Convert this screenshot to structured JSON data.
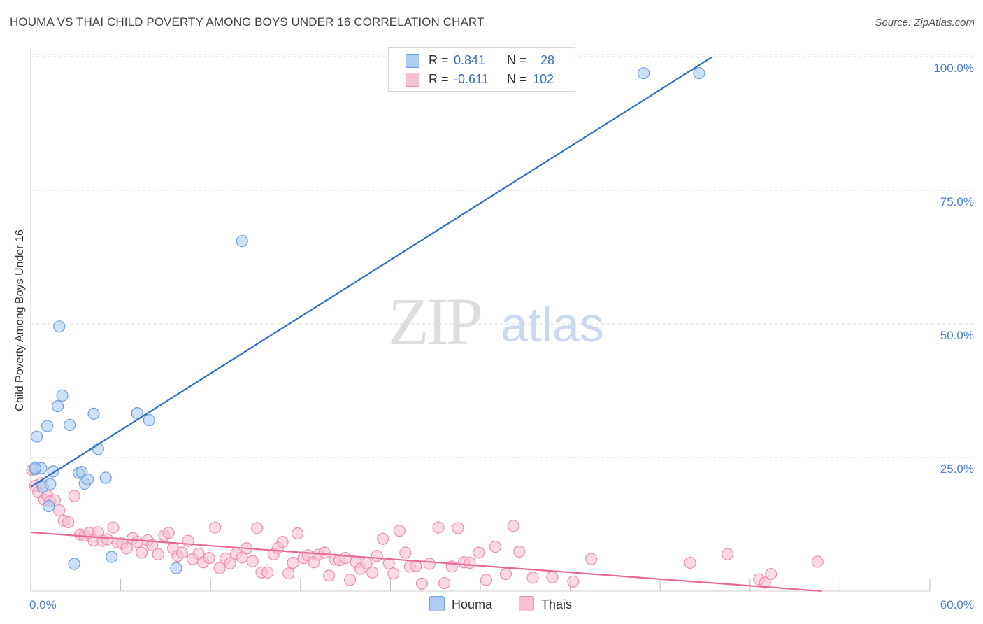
{
  "title": "HOUMA VS THAI CHILD POVERTY AMONG BOYS UNDER 16 CORRELATION CHART",
  "source": "Source: ZipAtlas.com",
  "watermark": {
    "zip": "ZIP",
    "atlas": "atlas"
  },
  "legend": {
    "r_label": "R =",
    "n_label": "N =",
    "houma": {
      "r": "0.841",
      "n": "28"
    },
    "thais": {
      "r": "-0.611",
      "n": "102"
    }
  },
  "bottom_legend": {
    "houma": "Houma",
    "thais": "Thais"
  },
  "colors": {
    "houma_fill": "#aecbf2",
    "houma_stroke": "#6f9fe0",
    "houma_line": "#2f6fcb",
    "thais_fill": "#f7bfd2",
    "thais_stroke": "#ee8fb0",
    "thais_line": "#e8689a",
    "tick_label": "#4a7fcf",
    "grid": "#d9d9d9"
  },
  "chart_data": {
    "type": "scatter",
    "title": "HOUMA VS THAI CHILD POVERTY AMONG BOYS UNDER 16 CORRELATION CHART",
    "xlabel": "",
    "ylabel": "Child Poverty Among Boys Under 16",
    "xlim": [
      0,
      60
    ],
    "ylim": [
      0,
      105
    ],
    "x_tick_labels": [
      "0.0%",
      "60.0%"
    ],
    "y_ticks": [
      25,
      50,
      75,
      100
    ],
    "y_tick_labels": [
      "25.0%",
      "50.0%",
      "75.0%",
      "100.0%"
    ],
    "grid": true,
    "series": [
      {
        "name": "Houma",
        "points": [
          [
            0.3,
            22.8
          ],
          [
            0.4,
            28.9
          ],
          [
            0.7,
            23.0
          ],
          [
            0.8,
            19.5
          ],
          [
            1.1,
            30.9
          ],
          [
            1.3,
            20.0
          ],
          [
            1.5,
            22.4
          ],
          [
            1.8,
            34.6
          ],
          [
            1.9,
            49.5
          ],
          [
            2.1,
            36.6
          ],
          [
            2.6,
            31.1
          ],
          [
            2.9,
            5.1
          ],
          [
            3.2,
            22.1
          ],
          [
            3.4,
            22.3
          ],
          [
            3.6,
            20.1
          ],
          [
            3.8,
            20.9
          ],
          [
            4.2,
            33.2
          ],
          [
            4.5,
            26.6
          ],
          [
            5.0,
            21.2
          ],
          [
            5.4,
            6.4
          ],
          [
            7.1,
            33.3
          ],
          [
            7.9,
            32.0
          ],
          [
            9.7,
            4.3
          ],
          [
            14.1,
            65.5
          ],
          [
            40.9,
            96.9
          ],
          [
            44.6,
            96.9
          ],
          [
            1.2,
            15.9
          ],
          [
            0.3,
            23.0
          ]
        ],
        "trend": [
          [
            0.0,
            19.5
          ],
          [
            45.5,
            100.0
          ]
        ]
      },
      {
        "name": "Thais",
        "points": [
          [
            0.1,
            22.7
          ],
          [
            0.3,
            19.7
          ],
          [
            0.5,
            18.5
          ],
          [
            0.7,
            20.2
          ],
          [
            0.9,
            17.1
          ],
          [
            1.1,
            17.9
          ],
          [
            1.3,
            16.8
          ],
          [
            1.6,
            17.0
          ],
          [
            1.9,
            15.1
          ],
          [
            2.2,
            13.2
          ],
          [
            2.5,
            12.9
          ],
          [
            2.9,
            17.8
          ],
          [
            3.3,
            10.6
          ],
          [
            3.6,
            10.4
          ],
          [
            3.9,
            10.9
          ],
          [
            4.2,
            9.5
          ],
          [
            4.5,
            11.0
          ],
          [
            4.8,
            9.4
          ],
          [
            5.1,
            9.7
          ],
          [
            5.5,
            11.9
          ],
          [
            5.8,
            9.1
          ],
          [
            6.1,
            8.9
          ],
          [
            6.4,
            8.0
          ],
          [
            6.8,
            9.9
          ],
          [
            7.1,
            9.2
          ],
          [
            7.4,
            7.2
          ],
          [
            7.8,
            9.5
          ],
          [
            8.1,
            8.6
          ],
          [
            8.5,
            6.9
          ],
          [
            8.9,
            10.4
          ],
          [
            9.2,
            10.9
          ],
          [
            9.5,
            8.0
          ],
          [
            9.8,
            6.6
          ],
          [
            10.1,
            7.2
          ],
          [
            10.5,
            9.4
          ],
          [
            10.8,
            6.0
          ],
          [
            11.2,
            7.0
          ],
          [
            11.5,
            5.4
          ],
          [
            11.9,
            6.2
          ],
          [
            12.3,
            11.9
          ],
          [
            12.6,
            4.3
          ],
          [
            13.0,
            6.1
          ],
          [
            13.3,
            5.2
          ],
          [
            13.7,
            7.0
          ],
          [
            14.1,
            6.3
          ],
          [
            14.4,
            8.0
          ],
          [
            14.8,
            5.6
          ],
          [
            15.1,
            11.8
          ],
          [
            15.4,
            3.5
          ],
          [
            15.8,
            3.5
          ],
          [
            16.2,
            6.9
          ],
          [
            16.5,
            8.1
          ],
          [
            16.8,
            9.2
          ],
          [
            17.2,
            3.3
          ],
          [
            17.5,
            5.3
          ],
          [
            17.8,
            10.8
          ],
          [
            18.2,
            6.2
          ],
          [
            18.5,
            6.7
          ],
          [
            18.9,
            5.4
          ],
          [
            19.2,
            6.8
          ],
          [
            19.6,
            7.2
          ],
          [
            19.9,
            2.9
          ],
          [
            20.3,
            5.9
          ],
          [
            20.6,
            5.8
          ],
          [
            21.0,
            6.2
          ],
          [
            21.3,
            2.1
          ],
          [
            21.7,
            5.4
          ],
          [
            22.0,
            4.2
          ],
          [
            22.4,
            5.2
          ],
          [
            22.8,
            3.5
          ],
          [
            23.1,
            6.6
          ],
          [
            23.5,
            9.8
          ],
          [
            23.9,
            5.2
          ],
          [
            24.2,
            3.3
          ],
          [
            24.6,
            11.3
          ],
          [
            25.0,
            7.2
          ],
          [
            25.3,
            4.6
          ],
          [
            25.7,
            4.7
          ],
          [
            26.1,
            1.4
          ],
          [
            26.6,
            5.1
          ],
          [
            27.2,
            11.9
          ],
          [
            27.6,
            1.5
          ],
          [
            28.1,
            4.6
          ],
          [
            28.5,
            11.8
          ],
          [
            28.9,
            5.4
          ],
          [
            29.3,
            5.3
          ],
          [
            29.9,
            7.2
          ],
          [
            30.4,
            2.1
          ],
          [
            31.0,
            8.3
          ],
          [
            31.7,
            3.2
          ],
          [
            32.2,
            12.2
          ],
          [
            32.6,
            7.4
          ],
          [
            33.5,
            2.5
          ],
          [
            34.8,
            2.6
          ],
          [
            36.2,
            1.8
          ],
          [
            37.4,
            6.0
          ],
          [
            44.0,
            5.3
          ],
          [
            46.5,
            6.9
          ],
          [
            48.6,
            2.2
          ],
          [
            49.0,
            1.6
          ],
          [
            49.4,
            3.2
          ],
          [
            52.5,
            5.5
          ]
        ],
        "trend": [
          [
            0.0,
            11.0
          ],
          [
            52.8,
            0.0
          ]
        ]
      }
    ]
  }
}
